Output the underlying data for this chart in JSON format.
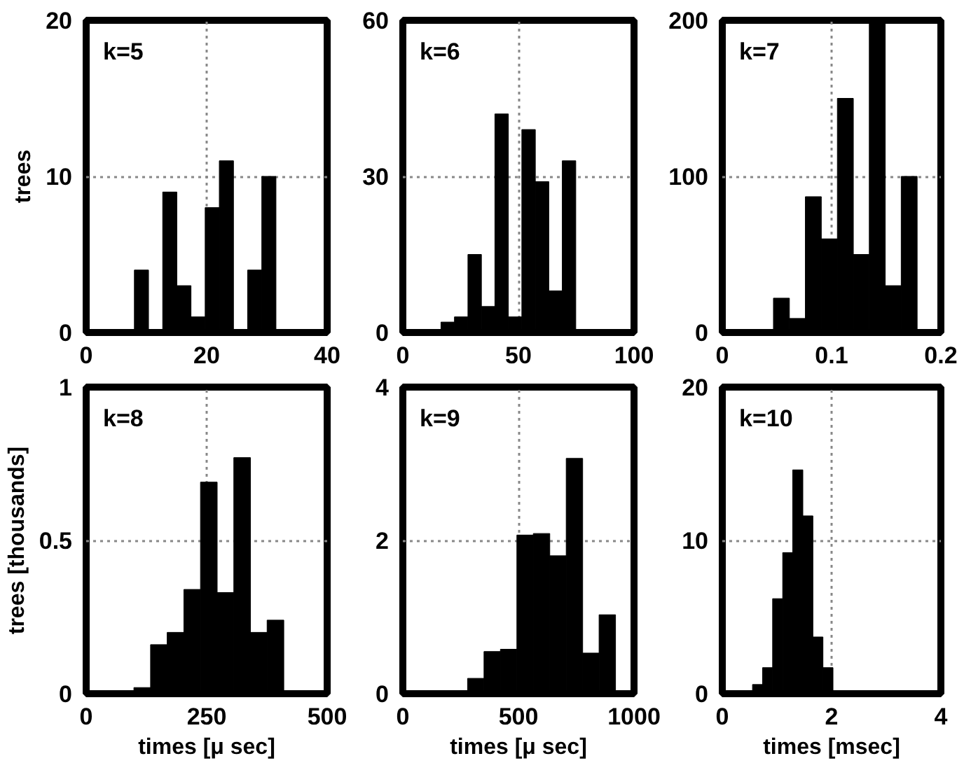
{
  "chart_data": [
    {
      "type": "histogram",
      "annotations": [
        "k=5"
      ],
      "ylabel": "trees",
      "bins": [
        8,
        10.35,
        12.7,
        15.05,
        17.4,
        19.75,
        22.1,
        24.45,
        26.8,
        29.15,
        31.5
      ],
      "values": [
        4,
        0,
        9,
        3,
        1,
        8,
        11,
        0,
        4,
        10
      ],
      "color": "#000000",
      "xlim": [
        0,
        40
      ],
      "xticks": [
        0,
        20,
        40
      ],
      "ylim": [
        0,
        20
      ],
      "yticks": [
        0,
        10,
        20
      ],
      "grid": true
    },
    {
      "type": "histogram",
      "annotations": [
        "k=6"
      ],
      "bins": [
        16.5,
        22.33,
        28.16,
        33.99,
        39.82,
        45.65,
        51.48,
        57.31,
        63.14,
        68.97,
        74.8
      ],
      "values": [
        2,
        3,
        15,
        5,
        42,
        3,
        39,
        29,
        8,
        33
      ],
      "color": "#000000",
      "xlim": [
        0,
        100
      ],
      "xticks": [
        0,
        50,
        100
      ],
      "ylim": [
        0,
        60
      ],
      "yticks": [
        0,
        30,
        60
      ],
      "grid": true
    },
    {
      "type": "histogram",
      "annotations": [
        "k=7"
      ],
      "bins": [
        0.0468,
        0.0614,
        0.076,
        0.0906,
        0.1053,
        0.1199,
        0.1345,
        0.1491,
        0.1637,
        0.1783
      ],
      "values": [
        22,
        9,
        87,
        60,
        150,
        50,
        200,
        30,
        100
      ],
      "color": "#000000",
      "xlim": [
        0,
        0.2
      ],
      "xticks": [
        0,
        0.1,
        0.2
      ],
      "ylim": [
        0,
        200
      ],
      "yticks": [
        0,
        100,
        200
      ],
      "grid": true
    },
    {
      "type": "histogram",
      "annotations": [
        "k=8"
      ],
      "xlabel": "times [μ sec]",
      "ylabel": "trees [thousands]",
      "bins": [
        99,
        133.6,
        168.1,
        202.7,
        237.2,
        271.8,
        306.3,
        340.9,
        375.4,
        410
      ],
      "values": [
        0.02,
        0.16,
        0.2,
        0.34,
        0.69,
        0.33,
        0.77,
        0.2,
        0.24
      ],
      "color": "#000000",
      "xlim": [
        0,
        500
      ],
      "xticks": [
        0,
        250,
        500
      ],
      "ylim": [
        0,
        1
      ],
      "yticks": [
        0,
        0.5,
        1
      ],
      "grid": true
    },
    {
      "type": "histogram",
      "annotations": [
        "k=9"
      ],
      "xlabel": "times [μ sec]",
      "bins": [
        280,
        351.1,
        422.2,
        493.3,
        564.4,
        635.6,
        706.7,
        777.8,
        848.9,
        920
      ],
      "values": [
        0.2,
        0.55,
        0.58,
        2.07,
        2.09,
        1.8,
        3.07,
        0.53,
        1.03
      ],
      "color": "#000000",
      "xlim": [
        0,
        1000
      ],
      "xticks": [
        0,
        500,
        1000
      ],
      "ylim": [
        0,
        4
      ],
      "yticks": [
        0,
        2,
        4
      ],
      "grid": true
    },
    {
      "type": "histogram",
      "annotations": [
        "k=10"
      ],
      "xlabel": "times [msec]",
      "bins": [
        0.553,
        0.737,
        0.921,
        1.105,
        1.289,
        1.474,
        1.658,
        1.842,
        2.026
      ],
      "values": [
        0.6,
        1.7,
        6.2,
        9.2,
        14.6,
        11.6,
        3.7,
        1.7
      ],
      "color": "#000000",
      "xlim": [
        0,
        4
      ],
      "xticks": [
        0,
        2,
        4
      ],
      "ylim": [
        0,
        20
      ],
      "yticks": [
        0,
        10,
        20
      ],
      "grid": true
    }
  ]
}
